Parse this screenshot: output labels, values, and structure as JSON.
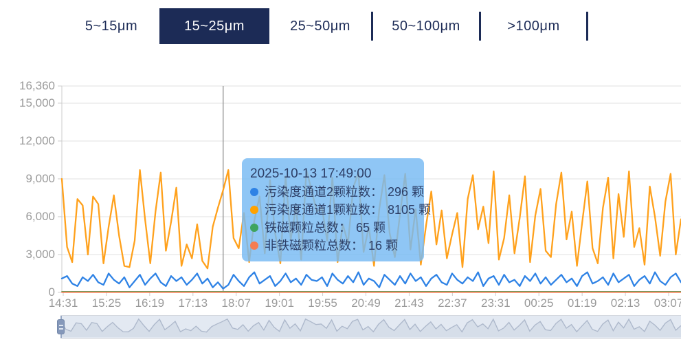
{
  "tabs": {
    "items": [
      {
        "label": "5~15μm",
        "selected": false,
        "divider_after": false
      },
      {
        "label": "15~25μm",
        "selected": true,
        "divider_after": false
      },
      {
        "label": "25~50μm",
        "selected": false,
        "divider_after": true
      },
      {
        "label": "50~100μm",
        "selected": false,
        "divider_after": true
      },
      {
        "label": ">100μm",
        "selected": false,
        "divider_after": true
      }
    ],
    "navy": "#1c2b56",
    "selected_text": "#ffffff"
  },
  "tooltip": {
    "timestamp": "2025-10-13 17:49:00",
    "rows": [
      {
        "label": "污染度通道2颗粒数：",
        "value": 296,
        "display": "296 颗",
        "color": "#2e82e5"
      },
      {
        "label": "污染度通道1颗粒数：",
        "value": 8105,
        "display": "8105 颗",
        "color": "#ffa200"
      },
      {
        "label": "铁磁颗粒总数：",
        "value": 65,
        "display": "65 颗",
        "color": "#3fa45f"
      },
      {
        "label": "非铁磁颗粒总数：",
        "value": 16,
        "display": "16 颗",
        "color": "#f57d52"
      }
    ],
    "bg": "rgba(118,186,243,0.82)",
    "text_color": "#2c3e66"
  },
  "chart_data": {
    "type": "line",
    "title": "",
    "xlabel": "",
    "ylabel": "",
    "grid": "horizontal",
    "legend_position": "none (values shown in tooltip)",
    "x_time_labels": [
      "14:31",
      "15:25",
      "16:19",
      "17:13",
      "18:07",
      "19:01",
      "19:55",
      "20:49",
      "21:43",
      "22:37",
      "23:31",
      "00:25",
      "01:19",
      "02:13",
      "03:07"
    ],
    "y_axis": {
      "min": 0,
      "max": 16360,
      "ticks": [
        "16,360",
        "15,000",
        "12,000",
        "9,000",
        "6,000",
        "3,000",
        "0"
      ],
      "tick_values": [
        16360,
        15000,
        12000,
        9000,
        6000,
        3000,
        0
      ]
    },
    "highlighted_point": {
      "time": "2025-10-13 17:49:00",
      "index": 31
    },
    "series": [
      {
        "name": "污染度通道1颗粒数",
        "color": "#ffa11c",
        "unit": "颗",
        "values": [
          9000,
          3600,
          2400,
          7400,
          6900,
          3000,
          7600,
          7000,
          2300,
          5200,
          7700,
          4500,
          2100,
          2000,
          4100,
          9700,
          5800,
          2300,
          6400,
          9500,
          3300,
          5600,
          8300,
          2100,
          3800,
          2700,
          5400,
          2500,
          1900,
          5200,
          6700,
          8105,
          9700,
          4300,
          3500,
          6300,
          2400,
          5700,
          7600,
          3100,
          8900,
          4700,
          2300,
          9200,
          4200,
          6800,
          2600,
          9700,
          8100,
          6400,
          6700,
          4100,
          9100,
          2400,
          5400,
          3900,
          8300,
          9500,
          3200,
          5200,
          2100,
          6600,
          9300,
          4700,
          2800,
          6200,
          9400,
          3400,
          6600,
          2200,
          5300,
          8000,
          3800,
          6500,
          2700,
          4600,
          6300,
          2000,
          7400,
          9300,
          5000,
          6800,
          3900,
          9600,
          2600,
          4300,
          7700,
          3100,
          5900,
          9200,
          2400,
          6100,
          8200,
          3300,
          2800,
          7000,
          9500,
          4200,
          6400,
          2100,
          5500,
          8800,
          3500,
          2300,
          6700,
          9100,
          2700,
          7800,
          4400,
          9600,
          3600,
          5100,
          2200,
          8400,
          6000,
          2900,
          7200,
          9400,
          3000,
          5800
        ]
      },
      {
        "name": "污染度通道2颗粒数",
        "color": "#2e82e5",
        "unit": "颗",
        "values": [
          1100,
          1300,
          700,
          500,
          1200,
          900,
          1400,
          800,
          600,
          1500,
          1000,
          700,
          1200,
          400,
          900,
          1400,
          600,
          1100,
          1500,
          800,
          500,
          1300,
          900,
          1200,
          600,
          1000,
          1500,
          700,
          1100,
          400,
          800,
          296,
          600,
          1400,
          900,
          500,
          1200,
          1600,
          700,
          1000,
          1300,
          500,
          900,
          1500,
          800,
          1100,
          600,
          1400,
          1000,
          900,
          1200,
          500,
          1500,
          1000,
          700,
          1300,
          800,
          1600,
          600,
          1100,
          900,
          400,
          1400,
          1000,
          600,
          1300,
          700,
          1500,
          900,
          1200,
          500,
          1100,
          1400,
          800,
          600,
          1500,
          1000,
          700,
          1200,
          900,
          1600,
          500,
          1100,
          1300,
          600,
          1400,
          800,
          1000,
          500,
          1300,
          900,
          1500,
          700,
          1200,
          600,
          1000,
          1400,
          800,
          1100,
          500,
          1300,
          1600,
          700,
          900,
          1200,
          600,
          1500,
          800,
          1100,
          1400,
          500,
          1000,
          1300,
          700,
          1600,
          900,
          600,
          1200,
          1500,
          800
        ]
      },
      {
        "name": "铁磁颗粒总数",
        "color": "#3fa45f",
        "unit": "颗",
        "constant_value": 65,
        "points": 120
      },
      {
        "name": "非铁磁颗粒总数",
        "color": "#f57d52",
        "unit": "颗",
        "constant_value": 16,
        "points": 120
      }
    ]
  },
  "axis_style": {
    "label_color": "#9a9a9a",
    "grid_color": "#e0e0e0",
    "axis_color": "#cccccc",
    "pointer_color": "#8f8f8f"
  },
  "datazoom": {
    "bg": "#e3e9f2",
    "line_color": "#adb8cb",
    "fill_color": "rgba(170,180,200,0.22)",
    "handle_color": "#8598ba",
    "border_color": "#c6cbd3"
  }
}
